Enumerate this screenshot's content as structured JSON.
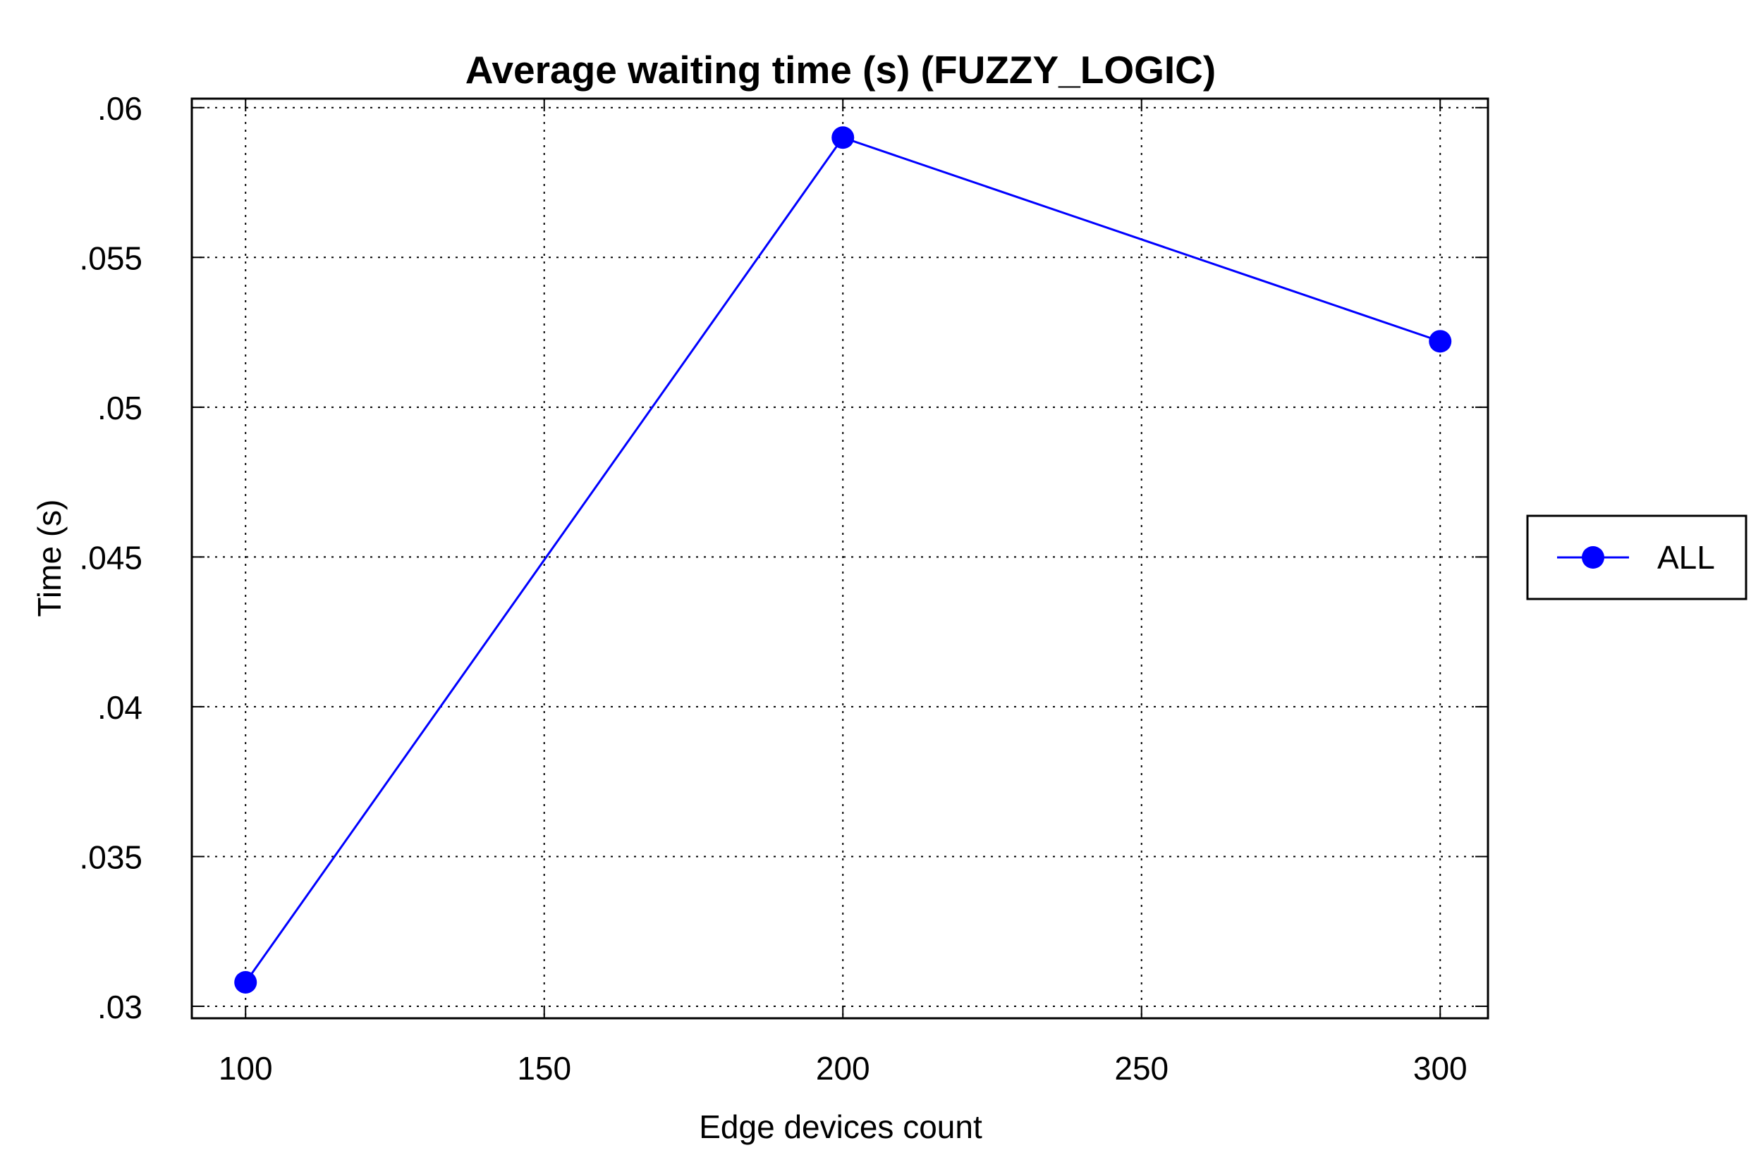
{
  "chart_data": {
    "type": "line",
    "title": "Average waiting time (s) (FUZZY_LOGIC)",
    "xlabel": "Edge devices count",
    "ylabel": "Time (s)",
    "x": [
      100,
      200,
      300
    ],
    "series": [
      {
        "name": "ALL",
        "values": [
          0.0308,
          0.059,
          0.0522
        ],
        "color": "#0000ff",
        "marker": "circle"
      }
    ],
    "xlim": [
      91,
      308
    ],
    "ylim": [
      0.0296,
      0.0603
    ],
    "xticks": [
      100,
      150,
      200,
      250,
      300
    ],
    "xtick_labels": [
      "100",
      "150",
      "200",
      "250",
      "300"
    ],
    "yticks": [
      0.03,
      0.035,
      0.04,
      0.045,
      0.05,
      0.055,
      0.06
    ],
    "ytick_labels": [
      ".03",
      ".035",
      ".04",
      ".045",
      ".05",
      ".055",
      ".06"
    ],
    "grid": true,
    "grid_style": "dotted",
    "legend": {
      "position": "right",
      "entries": [
        "ALL"
      ]
    }
  }
}
